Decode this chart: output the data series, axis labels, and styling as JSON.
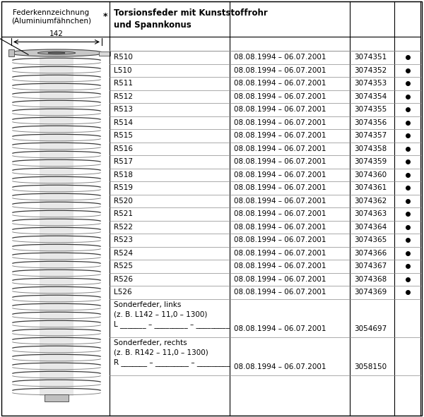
{
  "title_col1": "Federkennzeichnung\n(Aluminiumfähnchen)",
  "star": "*",
  "title_col2_line1": "Torsionsfeder mit Kunststoffrohr",
  "title_col2_line2": "und Spannkonus",
  "rows": [
    {
      "name": "R510",
      "date": "08.08.1994 – 06.07.2001",
      "num": "3074351",
      "dot": true
    },
    {
      "name": "L510",
      "date": "08.08.1994 – 06.07.2001",
      "num": "3074352",
      "dot": true
    },
    {
      "name": "R511",
      "date": "08.08.1994 – 06.07.2001",
      "num": "3074353",
      "dot": true
    },
    {
      "name": "R512",
      "date": "08.08.1994 – 06.07.2001",
      "num": "3074354",
      "dot": true
    },
    {
      "name": "R513",
      "date": "08.08.1994 – 06.07.2001",
      "num": "3074355",
      "dot": true
    },
    {
      "name": "R514",
      "date": "08.08.1994 – 06.07.2001",
      "num": "3074356",
      "dot": true
    },
    {
      "name": "R515",
      "date": "08.08.1994 – 06.07.2001",
      "num": "3074357",
      "dot": true
    },
    {
      "name": "R516",
      "date": "08.08.1994 – 06.07.2001",
      "num": "3074358",
      "dot": true
    },
    {
      "name": "R517",
      "date": "08.08.1994 – 06.07.2001",
      "num": "3074359",
      "dot": true
    },
    {
      "name": "R518",
      "date": "08.08.1994 – 06.07.2001",
      "num": "3074360",
      "dot": true
    },
    {
      "name": "R519",
      "date": "08.08.1994 – 06.07.2001",
      "num": "3074361",
      "dot": true
    },
    {
      "name": "R520",
      "date": "08.08.1994 – 06.07.2001",
      "num": "3074362",
      "dot": true
    },
    {
      "name": "R521",
      "date": "08.08.1994 – 06.07.2001",
      "num": "3074363",
      "dot": true
    },
    {
      "name": "R522",
      "date": "08.08.1994 – 06.07.2001",
      "num": "3074364",
      "dot": true
    },
    {
      "name": "R523",
      "date": "08.08.1994 – 06.07.2001",
      "num": "3074365",
      "dot": true
    },
    {
      "name": "R524",
      "date": "08.08.1994 – 06.07.2001",
      "num": "3074366",
      "dot": true
    },
    {
      "name": "R525",
      "date": "08.08.1994 – 06.07.2001",
      "num": "3074367",
      "dot": true
    },
    {
      "name": "R526",
      "date": "08.08.1994 – 06.07.2001",
      "num": "3074368",
      "dot": true
    },
    {
      "name": "L526",
      "date": "08.08.1994 – 06.07.2001",
      "num": "3074369",
      "dot": true
    }
  ],
  "sonder_links_line1": "Sonderfeder, links",
  "sonder_links_line2": "(z. B. L142 – 11,0 – 1300)",
  "sonder_links_line3": "L _______ – _________ – _________",
  "sonder_links_date": "08.08.1994 – 06.07.2001",
  "sonder_links_num": "3054697",
  "sonder_rechts_line1": "Sonderfeder, rechts",
  "sonder_rechts_line2": "(z. B. R142 – 11,0 – 1300)",
  "sonder_rechts_line3": "R _______ – _________ – _________",
  "sonder_rechts_date": "08.08.1994 – 06.07.2001",
  "sonder_rechts_num": "3058150",
  "bg_color": "#ffffff",
  "border_color": "#000000",
  "text_color": "#000000",
  "line_color": "#888888",
  "spring_fill": "#d0d0d0",
  "spring_stroke": "#555555"
}
